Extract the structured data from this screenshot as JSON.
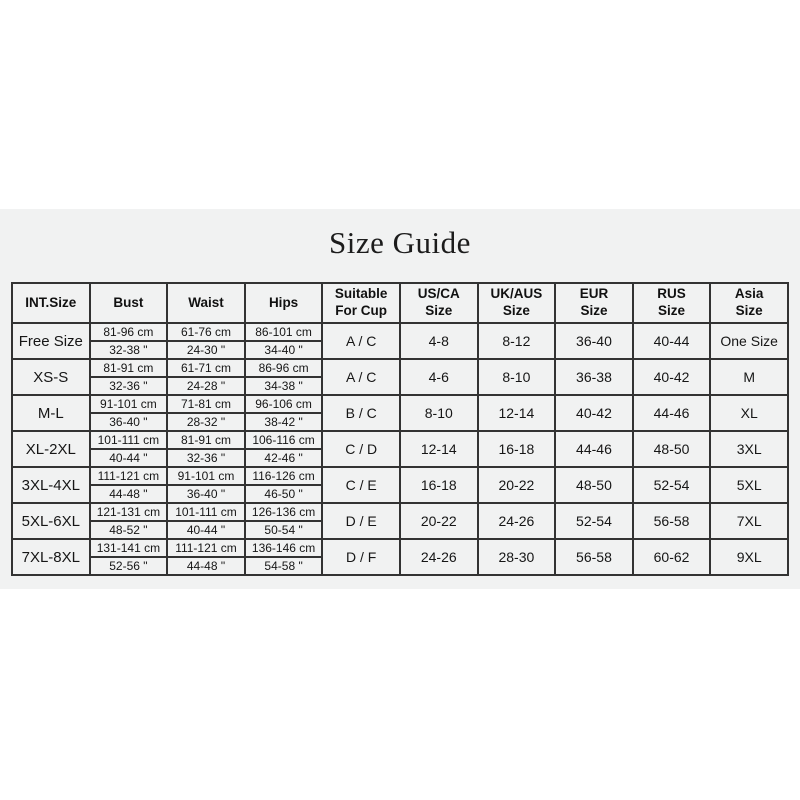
{
  "title": "Size Guide",
  "colors": {
    "panel_background": "#f1f2f2",
    "page_background": "#ffffff",
    "table_border": "#333333",
    "text": "#161616"
  },
  "table": {
    "headers": [
      {
        "key": "int-size",
        "label": "INT.Size"
      },
      {
        "key": "bust",
        "label": "Bust"
      },
      {
        "key": "waist",
        "label": "Waist"
      },
      {
        "key": "hips",
        "label": "Hips"
      },
      {
        "key": "suitable-for-cup",
        "label": "Suitable\nFor Cup"
      },
      {
        "key": "us-ca-size",
        "label": "US/CA\nSize"
      },
      {
        "key": "uk-aus-size",
        "label": "UK/AUS\nSize"
      },
      {
        "key": "eur-size",
        "label": "EUR\nSize"
      },
      {
        "key": "rus-size",
        "label": "RUS\nSize"
      },
      {
        "key": "asia-size",
        "label": "Asia\nSize"
      }
    ],
    "rows": [
      {
        "size": "Free Size",
        "bust_cm": "81-96 cm",
        "bust_in": "32-38 \"",
        "waist_cm": "61-76 cm",
        "waist_in": "24-30 \"",
        "hips_cm": "86-101 cm",
        "hips_in": "34-40 \"",
        "cup": "A / C",
        "us_ca": "4-8",
        "uk_aus": "8-12",
        "eur": "36-40",
        "rus": "40-44",
        "asia": "One Size"
      },
      {
        "size": "XS-S",
        "bust_cm": "81-91 cm",
        "bust_in": "32-36 \"",
        "waist_cm": "61-71 cm",
        "waist_in": "24-28 \"",
        "hips_cm": "86-96 cm",
        "hips_in": "34-38 \"",
        "cup": "A / C",
        "us_ca": "4-6",
        "uk_aus": "8-10",
        "eur": "36-38",
        "rus": "40-42",
        "asia": "M"
      },
      {
        "size": "M-L",
        "bust_cm": "91-101 cm",
        "bust_in": "36-40 \"",
        "waist_cm": "71-81 cm",
        "waist_in": "28-32 \"",
        "hips_cm": "96-106 cm",
        "hips_in": "38-42 \"",
        "cup": "B / C",
        "us_ca": "8-10",
        "uk_aus": "12-14",
        "eur": "40-42",
        "rus": "44-46",
        "asia": "XL"
      },
      {
        "size": "XL-2XL",
        "bust_cm": "101-111 cm",
        "bust_in": "40-44 \"",
        "waist_cm": "81-91 cm",
        "waist_in": "32-36 \"",
        "hips_cm": "106-116 cm",
        "hips_in": "42-46 \"",
        "cup": "C / D",
        "us_ca": "12-14",
        "uk_aus": "16-18",
        "eur": "44-46",
        "rus": "48-50",
        "asia": "3XL"
      },
      {
        "size": "3XL-4XL",
        "bust_cm": "111-121 cm",
        "bust_in": "44-48 \"",
        "waist_cm": "91-101 cm",
        "waist_in": "36-40 \"",
        "hips_cm": "116-126 cm",
        "hips_in": "46-50 \"",
        "cup": "C / E",
        "us_ca": "16-18",
        "uk_aus": "20-22",
        "eur": "48-50",
        "rus": "52-54",
        "asia": "5XL"
      },
      {
        "size": "5XL-6XL",
        "bust_cm": "121-131 cm",
        "bust_in": "48-52 \"",
        "waist_cm": "101-111 cm",
        "waist_in": "40-44 \"",
        "hips_cm": "126-136 cm",
        "hips_in": "50-54 \"",
        "cup": "D / E",
        "us_ca": "20-22",
        "uk_aus": "24-26",
        "eur": "52-54",
        "rus": "56-58",
        "asia": "7XL"
      },
      {
        "size": "7XL-8XL",
        "bust_cm": "131-141 cm",
        "bust_in": "52-56 \"",
        "waist_cm": "111-121 cm",
        "waist_in": "44-48 \"",
        "hips_cm": "136-146 cm",
        "hips_in": "54-58 \"",
        "cup": "D / F",
        "us_ca": "24-26",
        "uk_aus": "28-30",
        "eur": "56-58",
        "rus": "60-62",
        "asia": "9XL"
      }
    ]
  }
}
